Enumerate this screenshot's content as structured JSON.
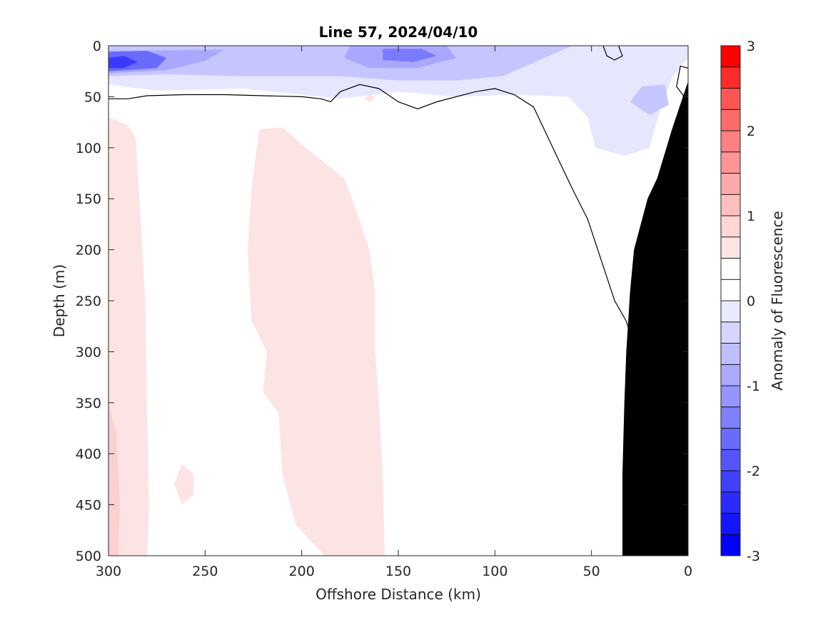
{
  "chart_data": {
    "type": "heatmap",
    "subtype": "filled-contour section",
    "title": "Line 57, 2024/04/10",
    "xlabel": "Offshore Distance (km)",
    "ylabel": "Depth (m)",
    "xlim": [
      300,
      0
    ],
    "ylim": [
      500,
      0
    ],
    "x_reversed": true,
    "y_reversed": true,
    "xticks": [
      300,
      250,
      200,
      150,
      100,
      50,
      0
    ],
    "yticks": [
      0,
      50,
      100,
      150,
      200,
      250,
      300,
      350,
      400,
      450,
      500
    ],
    "grid": false,
    "colorbar": {
      "label": "Anomaly of Fluorescence",
      "range": [
        -3,
        3
      ],
      "ticks": [
        -3,
        -2,
        -1,
        0,
        1,
        2,
        3
      ],
      "step": 0.25,
      "levels": [
        {
          "low": -3.0,
          "high": -2.75,
          "color": "#0000ff"
        },
        {
          "low": -2.75,
          "high": -2.5,
          "color": "#1515ff"
        },
        {
          "low": -2.5,
          "high": -2.25,
          "color": "#2b2bff"
        },
        {
          "low": -2.25,
          "high": -2.0,
          "color": "#4040ff"
        },
        {
          "low": -2.0,
          "high": -1.75,
          "color": "#5555ff"
        },
        {
          "low": -1.75,
          "high": -1.5,
          "color": "#6a6aff"
        },
        {
          "low": -1.5,
          "high": -1.25,
          "color": "#8080ff"
        },
        {
          "low": -1.25,
          "high": -1.0,
          "color": "#9595ff"
        },
        {
          "low": -1.0,
          "high": -0.75,
          "color": "#aaaaff"
        },
        {
          "low": -0.75,
          "high": -0.5,
          "color": "#bfbfff"
        },
        {
          "low": -0.5,
          "high": -0.25,
          "color": "#d5d5ff"
        },
        {
          "low": -0.25,
          "high": 0.0,
          "color": "#eaeaff"
        },
        {
          "low": 0.0,
          "high": 0.25,
          "color": "#ffffff"
        },
        {
          "low": 0.25,
          "high": 0.5,
          "color": "#ffffff"
        },
        {
          "low": 0.5,
          "high": 0.75,
          "color": "#ffe4e4"
        },
        {
          "low": 0.75,
          "high": 1.0,
          "color": "#ffd5d5"
        },
        {
          "low": 1.0,
          "high": 1.25,
          "color": "#ffbfbf"
        },
        {
          "low": 1.25,
          "high": 1.5,
          "color": "#ffaaaa"
        },
        {
          "low": 1.5,
          "high": 1.75,
          "color": "#ff9595"
        },
        {
          "low": 1.75,
          "high": 2.0,
          "color": "#ff8080"
        },
        {
          "low": 2.0,
          "high": 2.25,
          "color": "#ff6a6a"
        },
        {
          "low": 2.25,
          "high": 2.5,
          "color": "#ff5555"
        },
        {
          "low": 2.5,
          "high": 2.75,
          "color": "#ff2b2b"
        },
        {
          "low": 2.75,
          "high": 3.0,
          "color": "#ff0000"
        }
      ]
    },
    "regions": [
      {
        "name": "surface-negative-band",
        "anomaly": -0.3,
        "color": "#e6e6ff",
        "points": [
          [
            300,
            0
          ],
          [
            0,
            0
          ],
          [
            0,
            12
          ],
          [
            8,
            30
          ],
          [
            14,
            60
          ],
          [
            20,
            100
          ],
          [
            33,
            108
          ],
          [
            48,
            100
          ],
          [
            52,
            70
          ],
          [
            62,
            50
          ],
          [
            90,
            48
          ],
          [
            120,
            50
          ],
          [
            150,
            45
          ],
          [
            180,
            52
          ],
          [
            230,
            42
          ],
          [
            275,
            44
          ],
          [
            300,
            38
          ]
        ]
      },
      {
        "name": "surface-negative-mid",
        "anomaly": -0.7,
        "color": "#c6c6ff",
        "points": [
          [
            300,
            0
          ],
          [
            60,
            0
          ],
          [
            72,
            10
          ],
          [
            96,
            30
          ],
          [
            120,
            34
          ],
          [
            150,
            34
          ],
          [
            180,
            30
          ],
          [
            230,
            30
          ],
          [
            270,
            28
          ],
          [
            300,
            30
          ]
        ]
      },
      {
        "name": "inshore-negative-patch",
        "anomaly": -0.7,
        "color": "#c6c6ff",
        "points": [
          [
            12,
            38
          ],
          [
            24,
            40
          ],
          [
            30,
            55
          ],
          [
            20,
            68
          ],
          [
            10,
            58
          ]
        ]
      },
      {
        "name": "surface-negative-strong",
        "anomaly": -1.2,
        "color": "#a8a8ff",
        "points": [
          [
            300,
            5
          ],
          [
            240,
            4
          ],
          [
            250,
            15
          ],
          [
            270,
            24
          ],
          [
            300,
            27
          ]
        ]
      },
      {
        "name": "midsection-negative-strong",
        "anomaly": -1.2,
        "color": "#a8a8ff",
        "points": [
          [
            175,
            0
          ],
          [
            125,
            0
          ],
          [
            120,
            12
          ],
          [
            140,
            22
          ],
          [
            165,
            22
          ],
          [
            178,
            12
          ]
        ]
      },
      {
        "name": "offshore-core",
        "anomaly": -2.0,
        "color": "#6a6aff",
        "points": [
          [
            300,
            6
          ],
          [
            280,
            5
          ],
          [
            270,
            12
          ],
          [
            275,
            22
          ],
          [
            300,
            25
          ]
        ]
      },
      {
        "name": "offshore-core-inner",
        "anomaly": -2.5,
        "color": "#3a3aff",
        "points": [
          [
            300,
            12
          ],
          [
            292,
            10
          ],
          [
            285,
            16
          ],
          [
            292,
            22
          ],
          [
            300,
            22
          ]
        ]
      },
      {
        "name": "midsection-core",
        "anomaly": -1.7,
        "color": "#7a7aff",
        "points": [
          [
            158,
            3
          ],
          [
            138,
            3
          ],
          [
            130,
            10
          ],
          [
            142,
            16
          ],
          [
            158,
            14
          ]
        ]
      },
      {
        "name": "offshore-positive-column",
        "anomaly": 0.6,
        "color": "#fde4e4",
        "points": [
          [
            300,
            70
          ],
          [
            290,
            78
          ],
          [
            286,
            90
          ],
          [
            283,
            180
          ],
          [
            281,
            250
          ],
          [
            280,
            360
          ],
          [
            279,
            450
          ],
          [
            280,
            500
          ],
          [
            300,
            500
          ]
        ]
      },
      {
        "name": "offshore-positive-edge",
        "anomaly": 0.9,
        "color": "#fad0d0",
        "points": [
          [
            300,
            350
          ],
          [
            296,
            380
          ],
          [
            294,
            450
          ],
          [
            295,
            500
          ],
          [
            300,
            500
          ]
        ]
      },
      {
        "name": "central-positive-column",
        "anomaly": 0.6,
        "color": "#fde4e4",
        "points": [
          [
            222,
            82
          ],
          [
            210,
            80
          ],
          [
            198,
            100
          ],
          [
            178,
            130
          ],
          [
            172,
            160
          ],
          [
            165,
            200
          ],
          [
            162,
            240
          ],
          [
            162,
            300
          ],
          [
            160,
            350
          ],
          [
            158,
            420
          ],
          [
            157,
            500
          ],
          [
            188,
            500
          ],
          [
            203,
            470
          ],
          [
            210,
            420
          ],
          [
            212,
            360
          ],
          [
            220,
            340
          ],
          [
            218,
            300
          ],
          [
            226,
            270
          ],
          [
            228,
            200
          ],
          [
            226,
            140
          ]
        ]
      },
      {
        "name": "small-positive-patch",
        "anomaly": 0.6,
        "color": "#fde4e4",
        "points": [
          [
            262,
            410
          ],
          [
            256,
            420
          ],
          [
            256,
            440
          ],
          [
            262,
            450
          ],
          [
            266,
            430
          ]
        ]
      },
      {
        "name": "surface-positive-fleck",
        "anomaly": 0.6,
        "color": "#fde4e4",
        "points": [
          [
            165,
            48
          ],
          [
            162,
            50
          ],
          [
            164,
            55
          ],
          [
            168,
            52
          ]
        ]
      }
    ],
    "contours": [
      {
        "level": 0,
        "points": [
          [
            300,
            52
          ],
          [
            290,
            52
          ],
          [
            280,
            49
          ],
          [
            260,
            48
          ],
          [
            240,
            48
          ],
          [
            220,
            49
          ],
          [
            200,
            50
          ],
          [
            190,
            52
          ],
          [
            185,
            55
          ],
          [
            180,
            45
          ],
          [
            170,
            38
          ],
          [
            160,
            42
          ],
          [
            150,
            55
          ],
          [
            140,
            62
          ],
          [
            130,
            55
          ],
          [
            110,
            45
          ],
          [
            100,
            42
          ],
          [
            90,
            48
          ],
          [
            80,
            60
          ],
          [
            70,
            100
          ],
          [
            60,
            140
          ],
          [
            52,
            170
          ],
          [
            45,
            210
          ],
          [
            38,
            250
          ],
          [
            32,
            270
          ],
          [
            28,
            295
          ]
        ]
      },
      {
        "level": 0,
        "points": [
          [
            44,
            0
          ],
          [
            42,
            10
          ],
          [
            38,
            14
          ],
          [
            34,
            10
          ],
          [
            36,
            0
          ]
        ]
      },
      {
        "level": 0,
        "points": [
          [
            2,
            50
          ],
          [
            6,
            40
          ],
          [
            4,
            20
          ],
          [
            0,
            22
          ]
        ]
      }
    ],
    "bathymetry": {
      "color": "#000000",
      "points": [
        [
          0,
          35
        ],
        [
          8,
          80
        ],
        [
          16,
          130
        ],
        [
          21,
          150
        ],
        [
          28,
          200
        ],
        [
          30,
          240
        ],
        [
          32,
          300
        ],
        [
          33,
          350
        ],
        [
          34,
          420
        ],
        [
          34,
          500
        ],
        [
          0,
          500
        ]
      ]
    }
  }
}
